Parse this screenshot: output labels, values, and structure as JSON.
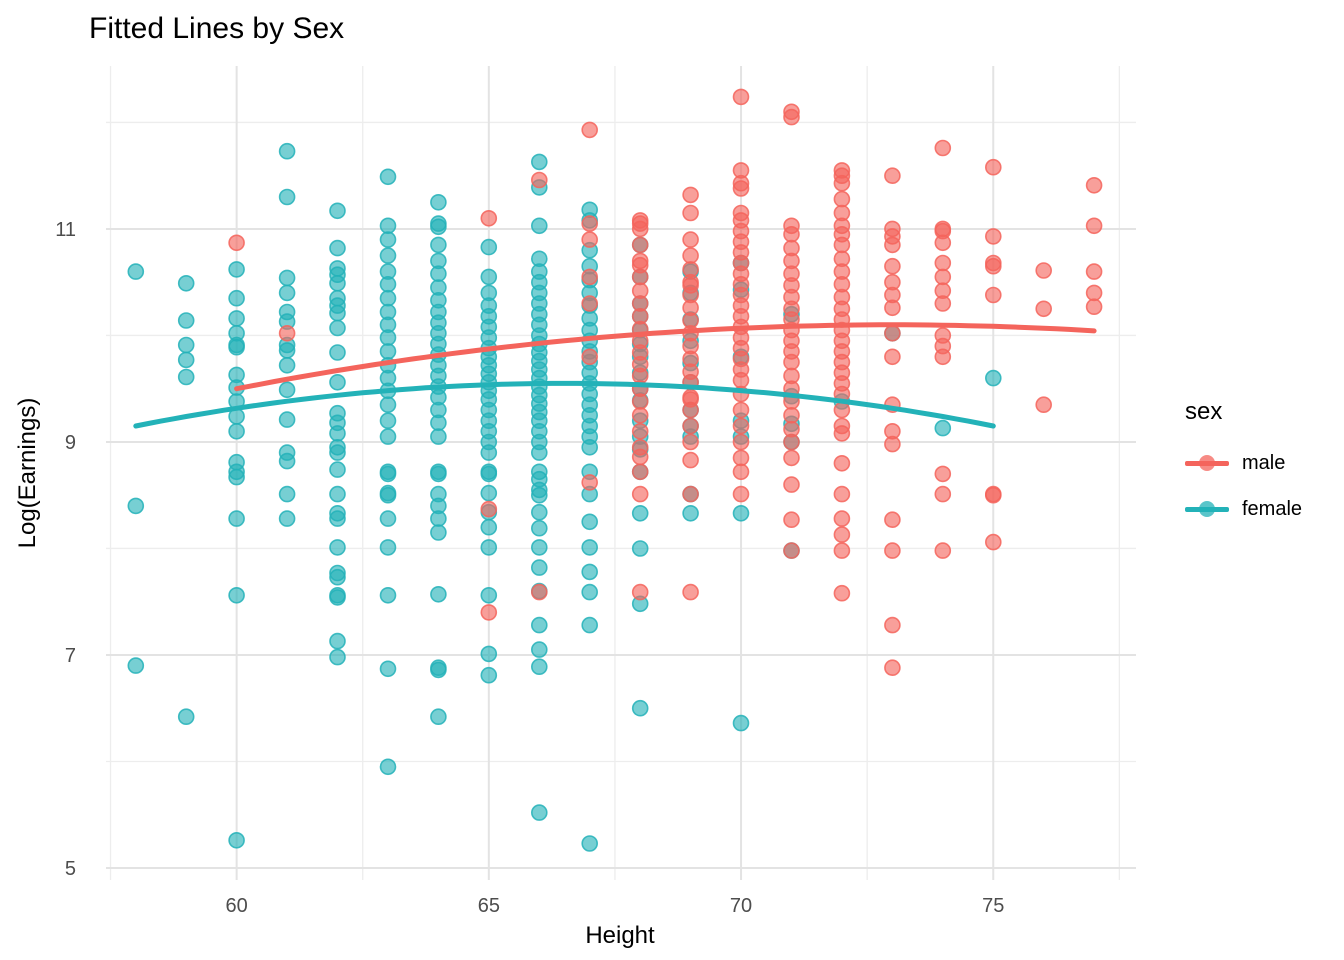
{
  "title": "Fitted Lines by Sex",
  "chart_data": {
    "type": "scatter",
    "title": "Fitted Lines by Sex",
    "xlabel": "Height",
    "ylabel": "Log(Earnings)",
    "xlim": [
      57.41,
      77.83
    ],
    "ylim": [
      4.887,
      12.53
    ],
    "x_ticks": [
      60,
      65,
      70,
      75
    ],
    "y_ticks": [
      5,
      7,
      9,
      11
    ],
    "x_minor": [
      57.5,
      62.5,
      67.5,
      72.5,
      77.5
    ],
    "y_minor": [
      6,
      8,
      10,
      12
    ],
    "grid": true,
    "background": "#ffffff",
    "grid_major_color": "#e3e3e3",
    "grid_minor_color": "#ededed",
    "tick_label_color": "#4d4d4d",
    "legend": {
      "title": "sex",
      "position": "right",
      "entries": [
        {
          "label": "male",
          "color": "#F4645C"
        },
        {
          "label": "female",
          "color": "#23B2B8"
        }
      ]
    },
    "point_style": {
      "radius": 7.5,
      "fill_opacity": 0.62,
      "stroke_opacity": 0.85,
      "stroke_width": 1.6
    },
    "fitted_lines": [
      {
        "name": "female",
        "color": "#23B2B8",
        "x_start": 58.0,
        "x_end": 75.0,
        "vertex_x": 66.5,
        "vertex_y": 9.55,
        "a": -0.005536,
        "width": 5
      },
      {
        "name": "male",
        "color": "#F4645C",
        "x_start": 60.0,
        "x_end": 77.0,
        "vertex_x": 73.0,
        "vertex_y": 10.1,
        "a": -0.00355,
        "width": 5
      }
    ],
    "series": [
      {
        "name": "female",
        "color": "#23B2B8",
        "points": [
          [
            58,
            [
              10.6,
              8.4,
              6.9
            ]
          ],
          [
            59,
            [
              10.49,
              10.14,
              9.91,
              9.77,
              9.61,
              6.42
            ]
          ],
          [
            60,
            [
              10.62,
              10.35,
              10.16,
              10.02,
              9.91,
              9.89,
              9.63,
              9.51,
              9.38,
              9.24,
              9.1,
              8.81,
              8.72,
              8.67,
              8.28,
              7.56,
              5.26
            ]
          ],
          [
            61,
            [
              11.73,
              11.3,
              10.54,
              10.4,
              10.22,
              10.13,
              9.91,
              9.86,
              9.72,
              9.49,
              9.21,
              8.9,
              8.82,
              8.51,
              8.28
            ]
          ],
          [
            62,
            [
              11.17,
              10.82,
              10.63,
              10.57,
              10.49,
              10.35,
              10.28,
              10.21,
              10.07,
              9.84,
              9.56,
              9.27,
              9.18,
              9.08,
              8.95,
              8.9,
              8.74,
              8.51,
              8.33,
              8.28,
              8.01,
              7.77,
              7.73,
              7.56,
              7.54,
              7.13,
              6.98
            ]
          ],
          [
            63,
            [
              11.49,
              11.03,
              10.9,
              10.75,
              10.6,
              10.48,
              10.35,
              10.22,
              10.1,
              9.98,
              9.85,
              9.72,
              9.6,
              9.48,
              9.35,
              9.2,
              9.05,
              8.72,
              8.7,
              8.52,
              8.5,
              8.28,
              8.01,
              7.56,
              6.87,
              5.95
            ]
          ],
          [
            64,
            [
              11.25,
              11.05,
              11.02,
              10.85,
              10.7,
              10.58,
              10.45,
              10.33,
              10.22,
              10.12,
              10.02,
              9.92,
              9.82,
              9.72,
              9.62,
              9.52,
              9.42,
              9.3,
              9.18,
              9.05,
              8.72,
              8.7,
              8.51,
              8.4,
              8.28,
              8.15,
              7.57,
              6.88,
              6.86,
              6.42
            ]
          ],
          [
            65,
            [
              10.83,
              10.55,
              10.4,
              10.28,
              10.18,
              10.08,
              9.98,
              9.88,
              9.8,
              9.72,
              9.64,
              9.56,
              9.48,
              9.4,
              9.3,
              9.2,
              9.1,
              9.0,
              8.9,
              8.72,
              8.7,
              8.52,
              8.34,
              8.2,
              8.01,
              7.56,
              7.01,
              6.81
            ]
          ],
          [
            66,
            [
              11.63,
              11.39,
              11.03,
              10.72,
              10.6,
              10.5,
              10.4,
              10.3,
              10.2,
              10.1,
              10.0,
              9.92,
              9.84,
              9.76,
              9.68,
              9.6,
              9.52,
              9.44,
              9.36,
              9.28,
              9.2,
              9.1,
              9.0,
              8.9,
              8.72,
              8.65,
              8.55,
              8.5,
              8.34,
              8.19,
              8.01,
              7.82,
              7.6,
              7.28,
              7.05,
              6.89,
              5.52
            ]
          ],
          [
            67,
            [
              11.18,
              11.08,
              10.8,
              10.65,
              10.52,
              10.4,
              10.28,
              10.16,
              10.05,
              9.95,
              9.85,
              9.75,
              9.65,
              9.55,
              9.45,
              9.35,
              9.25,
              9.15,
              9.05,
              8.95,
              8.72,
              8.51,
              8.25,
              8.01,
              7.78,
              7.59,
              7.28,
              5.23
            ]
          ],
          [
            68,
            [
              10.85,
              10.55,
              10.3,
              10.18,
              10.05,
              9.92,
              9.8,
              9.65,
              9.5,
              9.39,
              9.2,
              9.05,
              8.93,
              8.72,
              8.33,
              8.0,
              7.48,
              6.5
            ]
          ],
          [
            69,
            [
              10.6,
              10.4,
              10.15,
              9.95,
              9.74,
              9.56,
              9.3,
              9.15,
              9.05,
              8.51,
              8.33
            ]
          ],
          [
            70,
            [
              10.68,
              10.43,
              9.8,
              9.2,
              9.05,
              8.33,
              6.36
            ]
          ],
          [
            71,
            [
              10.2,
              9.43,
              9.17,
              9.0,
              7.98
            ]
          ],
          [
            72,
            [
              9.38
            ]
          ],
          [
            73,
            [
              10.02
            ]
          ],
          [
            74,
            [
              9.13
            ]
          ],
          [
            75,
            [
              9.6
            ]
          ]
        ]
      },
      {
        "name": "male",
        "color": "#F4645C",
        "points": [
          [
            60,
            [
              10.87
            ]
          ],
          [
            61,
            [
              10.02
            ]
          ],
          [
            65,
            [
              11.1,
              8.37,
              7.4
            ]
          ],
          [
            66,
            [
              11.46,
              7.59
            ]
          ],
          [
            67,
            [
              11.93,
              11.05,
              10.9,
              10.55,
              10.3,
              9.8,
              8.62
            ]
          ],
          [
            68,
            [
              11.08,
              11.05,
              11.0,
              10.85,
              10.7,
              10.66,
              10.55,
              10.42,
              10.3,
              10.18,
              10.06,
              9.95,
              9.84,
              9.73,
              9.62,
              9.5,
              9.38,
              9.25,
              9.1,
              8.95,
              8.86,
              8.72,
              8.51,
              7.59
            ]
          ],
          [
            69,
            [
              11.32,
              11.15,
              10.9,
              10.75,
              10.62,
              10.5,
              10.47,
              10.38,
              10.26,
              10.14,
              10.02,
              9.9,
              9.78,
              9.66,
              9.56,
              9.42,
              9.4,
              9.3,
              9.15,
              9.0,
              8.83,
              8.51,
              7.59
            ]
          ],
          [
            70,
            [
              12.24,
              11.55,
              11.43,
              11.38,
              11.15,
              11.08,
              10.98,
              10.88,
              10.78,
              10.68,
              10.58,
              10.48,
              10.38,
              10.28,
              10.18,
              10.08,
              9.98,
              9.88,
              9.78,
              9.68,
              9.58,
              9.45,
              9.3,
              9.15,
              9.0,
              8.85,
              8.72,
              8.51
            ]
          ],
          [
            71,
            [
              12.1,
              12.05,
              11.03,
              10.95,
              10.82,
              10.7,
              10.58,
              10.47,
              10.36,
              10.25,
              10.15,
              10.05,
              9.95,
              9.85,
              9.75,
              9.62,
              9.5,
              9.38,
              9.25,
              9.12,
              9.0,
              8.85,
              8.6,
              8.27,
              7.98
            ]
          ],
          [
            72,
            [
              11.55,
              11.5,
              11.43,
              11.28,
              11.15,
              11.03,
              10.95,
              10.85,
              10.72,
              10.6,
              10.48,
              10.36,
              10.25,
              10.15,
              10.05,
              9.95,
              9.85,
              9.75,
              9.65,
              9.55,
              9.45,
              9.3,
              9.15,
              9.08,
              8.8,
              8.51,
              8.28,
              8.13,
              7.98,
              7.58
            ]
          ],
          [
            73,
            [
              11.5,
              11.0,
              10.93,
              10.85,
              10.65,
              10.5,
              10.38,
              10.26,
              10.02,
              9.8,
              9.35,
              9.1,
              8.98,
              8.27,
              7.98,
              7.28,
              6.88
            ]
          ],
          [
            74,
            [
              11.76,
              11.0,
              10.98,
              10.87,
              10.68,
              10.55,
              10.42,
              10.3,
              10.0,
              9.9,
              9.8,
              8.7,
              8.51,
              7.98
            ]
          ],
          [
            75,
            [
              11.58,
              10.93,
              10.68,
              10.65,
              10.38,
              8.51,
              8.5,
              8.06
            ]
          ],
          [
            76,
            [
              10.61,
              10.25,
              9.35
            ]
          ],
          [
            77,
            [
              11.41,
              11.03,
              10.6,
              10.4,
              10.27
            ]
          ]
        ]
      }
    ]
  }
}
